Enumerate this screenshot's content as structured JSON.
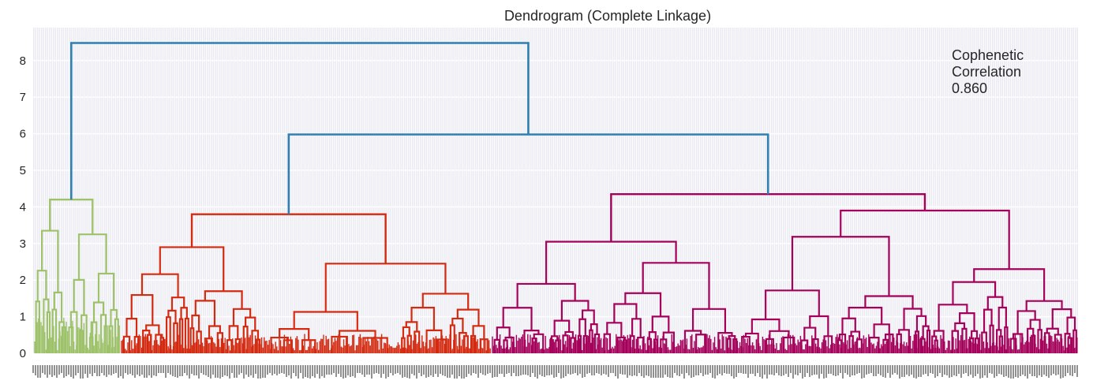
{
  "chart_data": {
    "type": "dendrogram",
    "title": "Dendrogram (Complete Linkage)",
    "xlabel": "",
    "ylabel": "",
    "ylim": [
      0,
      8.9
    ],
    "yticks": [
      "0",
      "1",
      "2",
      "3",
      "4",
      "5",
      "6",
      "7",
      "8"
    ],
    "grid": true,
    "annotation": [
      "Cophenetic",
      "Correlation",
      "0.860"
    ],
    "link_color_top": "#2f7fb0",
    "clusters": [
      {
        "color": "#9ec26a",
        "merge_height": 4.2,
        "sub_heights": [
          3.35,
          3.25
        ],
        "fine_max": 2.8
      },
      {
        "color": "#d42a10",
        "merge_height": 3.8,
        "sub_heights": [
          2.9,
          2.45
        ],
        "fine_max": 2.2
      },
      {
        "color": "#a5005a",
        "merge_height": 4.35,
        "sub_heights": [
          3.05,
          3.9
        ],
        "fine_max": 2.3
      }
    ],
    "top_links": [
      {
        "left": "red",
        "right": "magenta",
        "height": 5.98
      },
      {
        "left": "green",
        "right": "red+magenta",
        "height": 8.48
      }
    ]
  }
}
